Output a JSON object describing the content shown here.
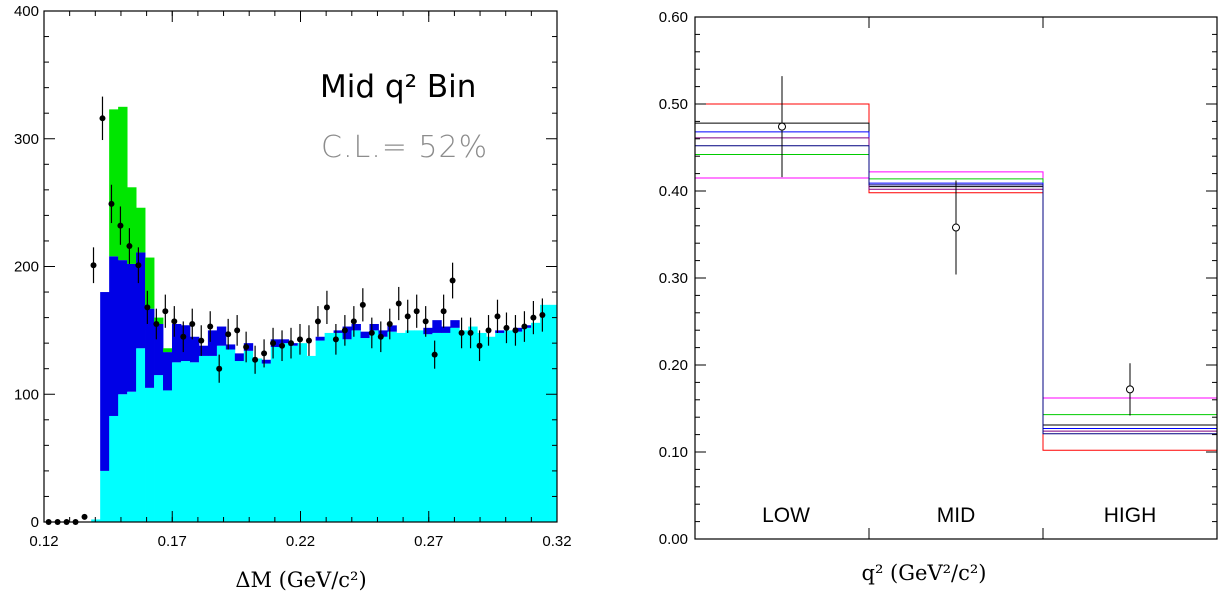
{
  "chart_data": [
    {
      "type": "bar",
      "subtype": "stacked-histogram",
      "annotation": "Mid q² Bin",
      "annotation_cl": "C.L.= 52%",
      "xlabel": "ΔM (GeV/c²)",
      "ylabel": "",
      "xlim": [
        0.12,
        0.32
      ],
      "ylim": [
        0,
        400
      ],
      "xticks": [
        "0.12",
        "0.17",
        "0.22",
        "0.27",
        "0.32"
      ],
      "yticks": [
        "0",
        "100",
        "200",
        "300",
        "400"
      ],
      "bin_width": 0.0035,
      "colors": {
        "cyan": "#00ffff",
        "blue": "#0000e6",
        "green": "#00e600",
        "white": "#ffffff",
        "points": "#000000"
      },
      "bin_edges_start": 0.1209,
      "series": [
        {
          "color": "cyan",
          "values": [
            0,
            0,
            0,
            0,
            0,
            2,
            40,
            83,
            100,
            102,
            136,
            105,
            115,
            103,
            125,
            126,
            125,
            130,
            130,
            138,
            135,
            126,
            134,
            128,
            124,
            137,
            140,
            138,
            140,
            130,
            142,
            148,
            148,
            143,
            150,
            144,
            150,
            145,
            149,
            148,
            150,
            150,
            147,
            148,
            148,
            152,
            150,
            153,
            148,
            145,
            148,
            150,
            149,
            152,
            156,
            170,
            170
          ]
        },
        {
          "color": "blue",
          "values": [
            0,
            0,
            0,
            0,
            0,
            0,
            140,
            125,
            105,
            100,
            75,
            62,
            40,
            30,
            30,
            28,
            20,
            8,
            20,
            15,
            4,
            6,
            6,
            0,
            3,
            6,
            3,
            2,
            0,
            0,
            3,
            0,
            2,
            10,
            5,
            5,
            5,
            5,
            5,
            0,
            0,
            0,
            5,
            10,
            5,
            6,
            0,
            0,
            0,
            0,
            2,
            0,
            3,
            2,
            0,
            0,
            0
          ]
        },
        {
          "color": "green",
          "values": [
            0,
            0,
            0,
            0,
            0,
            0,
            0,
            115,
            120,
            60,
            35,
            40,
            5,
            3,
            0,
            0,
            0,
            0,
            0,
            0,
            0,
            0,
            0,
            0,
            0,
            0,
            0,
            0,
            0,
            0,
            0,
            0,
            0,
            0,
            0,
            0,
            0,
            0,
            0,
            0,
            0,
            0,
            0,
            0,
            0,
            0,
            0,
            0,
            0,
            0,
            0,
            0,
            0,
            0,
            0,
            0,
            0
          ]
        },
        {
          "color": "white",
          "values": [
            0,
            0,
            0,
            0,
            0,
            0,
            0,
            0,
            0,
            0,
            0,
            0,
            0,
            0,
            0,
            0,
            0,
            0,
            0,
            0,
            0,
            0,
            0,
            0,
            0,
            0,
            0,
            0,
            0,
            0,
            0,
            0,
            0,
            0,
            0,
            0,
            0,
            0,
            20,
            0,
            0,
            0,
            0,
            0,
            0,
            0,
            0,
            0,
            0,
            0,
            0,
            0,
            0,
            0,
            18,
            0,
            0
          ]
        }
      ],
      "points": {
        "x": [
          0.1218,
          0.1253,
          0.1288,
          0.1323,
          0.1358,
          0.1393,
          0.1428,
          0.1463,
          0.1498,
          0.1533,
          0.1568,
          0.1603,
          0.1638,
          0.1673,
          0.1708,
          0.1743,
          0.1778,
          0.1813,
          0.1848,
          0.1883,
          0.1918,
          0.1953,
          0.1988,
          0.2023,
          0.2058,
          0.2093,
          0.2128,
          0.2163,
          0.2198,
          0.2233,
          0.2268,
          0.2303,
          0.2338,
          0.2373,
          0.2408,
          0.2443,
          0.2478,
          0.2513,
          0.2548,
          0.2583,
          0.2618,
          0.2653,
          0.2688,
          0.2723,
          0.2758,
          0.2793,
          0.2828,
          0.2863,
          0.2898,
          0.2933,
          0.2968,
          0.3003,
          0.3038,
          0.3073,
          0.3108,
          0.3143
        ],
        "y": [
          0,
          0,
          0,
          0,
          4,
          201,
          316,
          249,
          232,
          216,
          201,
          168,
          155,
          165,
          157,
          145,
          155,
          142,
          153,
          120,
          147,
          150,
          137,
          127,
          132,
          140,
          138,
          140,
          143,
          142,
          157,
          168,
          143,
          150,
          157,
          170,
          148,
          145,
          155,
          171,
          161,
          165,
          157,
          131,
          165,
          189,
          148,
          148,
          138,
          150,
          161,
          152,
          150,
          153,
          160,
          162
        ],
        "err": [
          1,
          1,
          1,
          1,
          2,
          14,
          17,
          15,
          15,
          14,
          14,
          13,
          12,
          13,
          12,
          12,
          12,
          12,
          12,
          11,
          12,
          12,
          12,
          11,
          11,
          12,
          12,
          12,
          12,
          12,
          12,
          13,
          12,
          12,
          12,
          13,
          12,
          12,
          12,
          13,
          13,
          13,
          12,
          11,
          13,
          14,
          12,
          12,
          12,
          12,
          13,
          12,
          12,
          12,
          13,
          13
        ]
      }
    },
    {
      "type": "step",
      "xlabel": "q² (GeV²/c²)",
      "ylabel": "",
      "ylim": [
        0,
        0.6
      ],
      "yticks": [
        "0.00",
        "0.10",
        "0.20",
        "0.30",
        "0.40",
        "0.50",
        "0.60"
      ],
      "categories": [
        "LOW",
        "MID",
        "HIGH"
      ],
      "data_points": {
        "values": [
          0.474,
          0.358,
          0.172
        ],
        "err": [
          0.058,
          0.054,
          0.03
        ]
      },
      "model_curves": [
        {
          "color": "#ff0000",
          "values": [
            0.5,
            0.398,
            0.102
          ]
        },
        {
          "color": "#ff00ff",
          "values": [
            0.415,
            0.422,
            0.162
          ]
        },
        {
          "color": "#00cc00",
          "values": [
            0.442,
            0.414,
            0.143
          ]
        },
        {
          "color": "#000000",
          "values": [
            0.478,
            0.405,
            0.131
          ]
        },
        {
          "color": "#0000ff",
          "values": [
            0.468,
            0.409,
            0.127
          ]
        },
        {
          "color": "#800080",
          "values": [
            0.461,
            0.402,
            0.124
          ]
        },
        {
          "color": "#000080",
          "values": [
            0.452,
            0.407,
            0.121
          ]
        }
      ]
    }
  ]
}
